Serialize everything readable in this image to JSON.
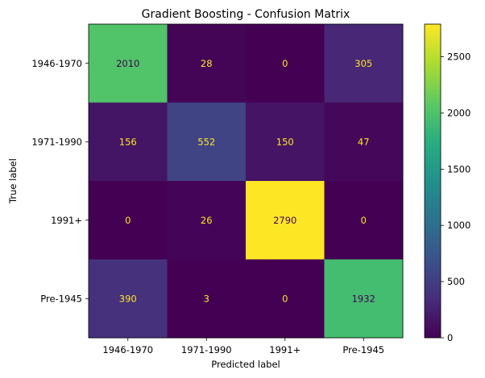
{
  "chart_data": {
    "type": "heatmap",
    "title": "Gradient Boosting - Confusion Matrix",
    "xlabel": "Predicted label",
    "ylabel": "True label",
    "x_categories": [
      "1946-1970",
      "1971-1990",
      "1991+",
      "Pre-1945"
    ],
    "y_categories": [
      "1946-1970",
      "1971-1990",
      "1991+",
      "Pre-1945"
    ],
    "values": [
      [
        2010,
        28,
        0,
        305
      ],
      [
        156,
        552,
        150,
        47
      ],
      [
        0,
        26,
        2790,
        0
      ],
      [
        390,
        3,
        0,
        1932
      ]
    ],
    "colormap": "viridis",
    "colorbar": {
      "range": [
        0,
        2790
      ],
      "ticks": [
        0,
        500,
        1000,
        1500,
        2000,
        2500
      ]
    },
    "text_colors": {
      "on_dark": "#fde725",
      "on_light": "#440154"
    }
  }
}
